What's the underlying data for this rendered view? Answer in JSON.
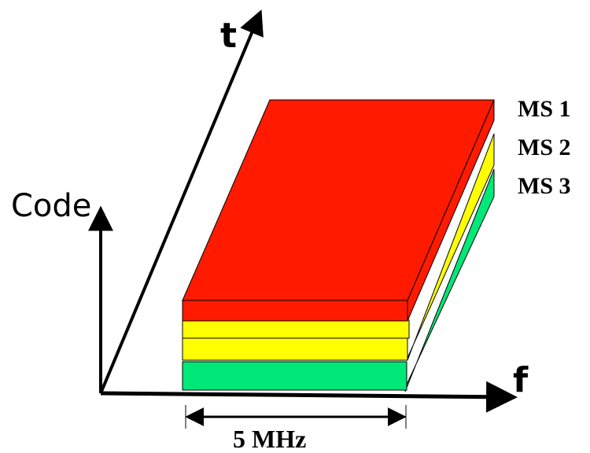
{
  "axes": {
    "code_label": "Code",
    "time_label": "t",
    "frequency_label": "f"
  },
  "bandwidth": {
    "label": "5 MHz"
  },
  "layers": [
    {
      "label": "MS 1",
      "color": "#ff1a00"
    },
    {
      "label": "MS 2",
      "color": "#ffff00"
    },
    {
      "label": "MS 3",
      "color": "#00e878"
    }
  ],
  "colors": {
    "ink": "#000000",
    "ms1_side": "#ff1a00",
    "ms2_face": "#ffff00",
    "ms3_face": "#00e878"
  }
}
